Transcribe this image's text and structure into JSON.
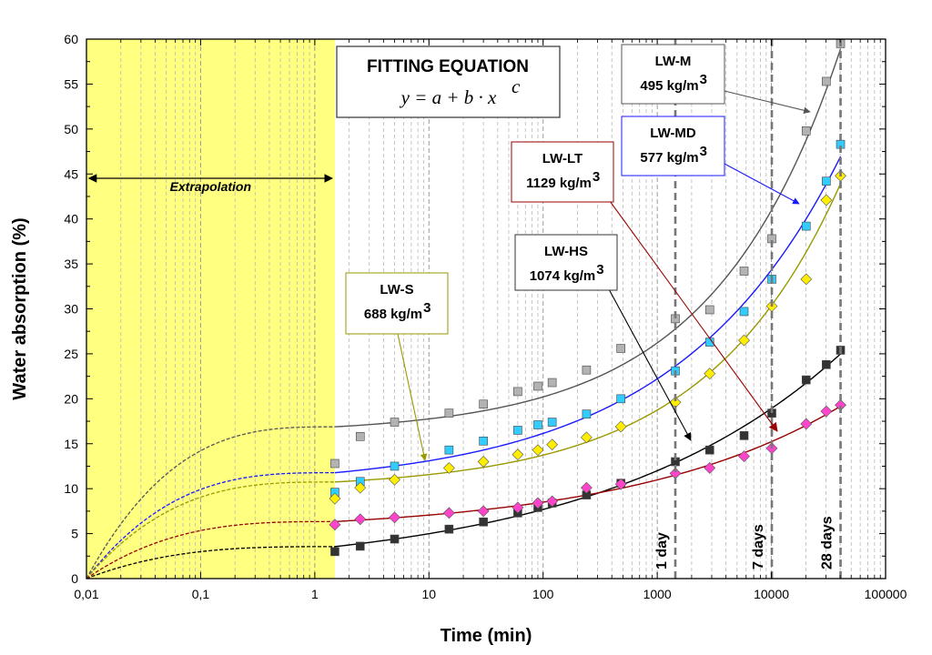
{
  "chart_data": {
    "type": "scatter",
    "x_scale": "log",
    "xlim": [
      0.01,
      100000
    ],
    "ylim": [
      0,
      60
    ],
    "xlabel": "Time (min)",
    "ylabel": "Water absorption (%)",
    "x_ticks": [
      {
        "value": 0.01,
        "label": "0,01"
      },
      {
        "value": 0.1,
        "label": "0,1"
      },
      {
        "value": 1,
        "label": "1"
      },
      {
        "value": 10,
        "label": "10"
      },
      {
        "value": 100,
        "label": "100"
      },
      {
        "value": 1000,
        "label": "1000"
      },
      {
        "value": 10000,
        "label": "10000"
      },
      {
        "value": 100000,
        "label": "100000"
      }
    ],
    "y_ticks": [
      0,
      5,
      10,
      15,
      20,
      25,
      30,
      35,
      40,
      45,
      50,
      55,
      60
    ],
    "grid": "vertical minor gridlines",
    "shaded_region": {
      "x_from": 0.01,
      "x_to": 1.5,
      "color": "#ffff80"
    },
    "extrapolation_label": "Extrapolation",
    "equation_box": {
      "title": "FITTING EQUATION",
      "equation": "y = a + b · x"
    },
    "vertical_markers": [
      {
        "x": 1440,
        "label": "1 day"
      },
      {
        "x": 10080,
        "label": "7 days"
      },
      {
        "x": 40320,
        "label": "28 days"
      }
    ],
    "series": [
      {
        "name": "LW-M",
        "density": "495 kg/m",
        "marker": "square",
        "marker_color": "#b3b3b3",
        "curve_color": "#555555",
        "x": [
          1.5,
          2.5,
          5,
          15,
          30,
          60,
          90,
          120,
          240,
          480,
          1440,
          2880,
          5760,
          10080,
          20160,
          30240,
          40320
        ],
        "values": [
          12.8,
          15.8,
          17.4,
          18.4,
          19.4,
          20.8,
          21.4,
          21.8,
          23.2,
          25.6,
          28.9,
          29.9,
          34.2,
          37.8,
          49.8,
          55.3,
          59.5
        ]
      },
      {
        "name": "LW-MD",
        "density": "577 kg/m",
        "marker": "square",
        "marker_color": "#33ccff",
        "curve_color": "#1a1aff",
        "x": [
          1.5,
          2.5,
          5,
          15,
          30,
          60,
          90,
          120,
          240,
          480,
          1440,
          2880,
          5760,
          10080,
          20160,
          30240,
          40320
        ],
        "values": [
          9.6,
          10.8,
          12.5,
          14.3,
          15.3,
          16.5,
          17.1,
          17.4,
          18.3,
          20.0,
          23.1,
          26.3,
          29.7,
          33.3,
          39.2,
          44.2,
          48.3
        ]
      },
      {
        "name": "LW-S",
        "density": "688 kg/m",
        "marker": "diamond",
        "marker_color": "#ffee00",
        "curve_color": "#999900",
        "x": [
          1.5,
          2.5,
          5,
          15,
          30,
          60,
          90,
          120,
          240,
          480,
          1440,
          2880,
          5760,
          10080,
          20160,
          30240,
          40320
        ],
        "values": [
          8.9,
          10.1,
          11.0,
          12.3,
          13.0,
          13.8,
          14.3,
          14.9,
          15.7,
          16.9,
          19.6,
          22.8,
          26.5,
          30.3,
          33.3,
          42.1,
          44.8
        ]
      },
      {
        "name": "LW-HS",
        "density": "1074 kg/m",
        "marker": "square",
        "marker_color": "#333333",
        "curve_color": "#000000",
        "x": [
          1.5,
          2.5,
          5,
          15,
          30,
          60,
          90,
          120,
          240,
          480,
          1440,
          2880,
          5760,
          10080,
          20160,
          30240,
          40320
        ],
        "values": [
          3.0,
          3.6,
          4.4,
          5.5,
          6.3,
          7.3,
          7.9,
          8.4,
          9.3,
          10.6,
          13.0,
          14.3,
          15.9,
          18.4,
          22.1,
          23.8,
          25.4
        ]
      },
      {
        "name": "LW-LT",
        "density": "1129 kg/m",
        "marker": "diamond",
        "marker_color": "#ff44cc",
        "curve_color": "#990000",
        "x": [
          1.5,
          2.5,
          5,
          15,
          30,
          60,
          90,
          120,
          240,
          480,
          1440,
          2880,
          5760,
          10080,
          20160,
          30240,
          40320
        ],
        "values": [
          6.0,
          6.6,
          6.8,
          7.3,
          7.5,
          7.9,
          8.4,
          8.6,
          10.1,
          10.5,
          11.7,
          12.3,
          13.6,
          14.5,
          17.2,
          18.6,
          19.3
        ]
      }
    ],
    "superscript": "3",
    "equation_exponent": "c"
  }
}
